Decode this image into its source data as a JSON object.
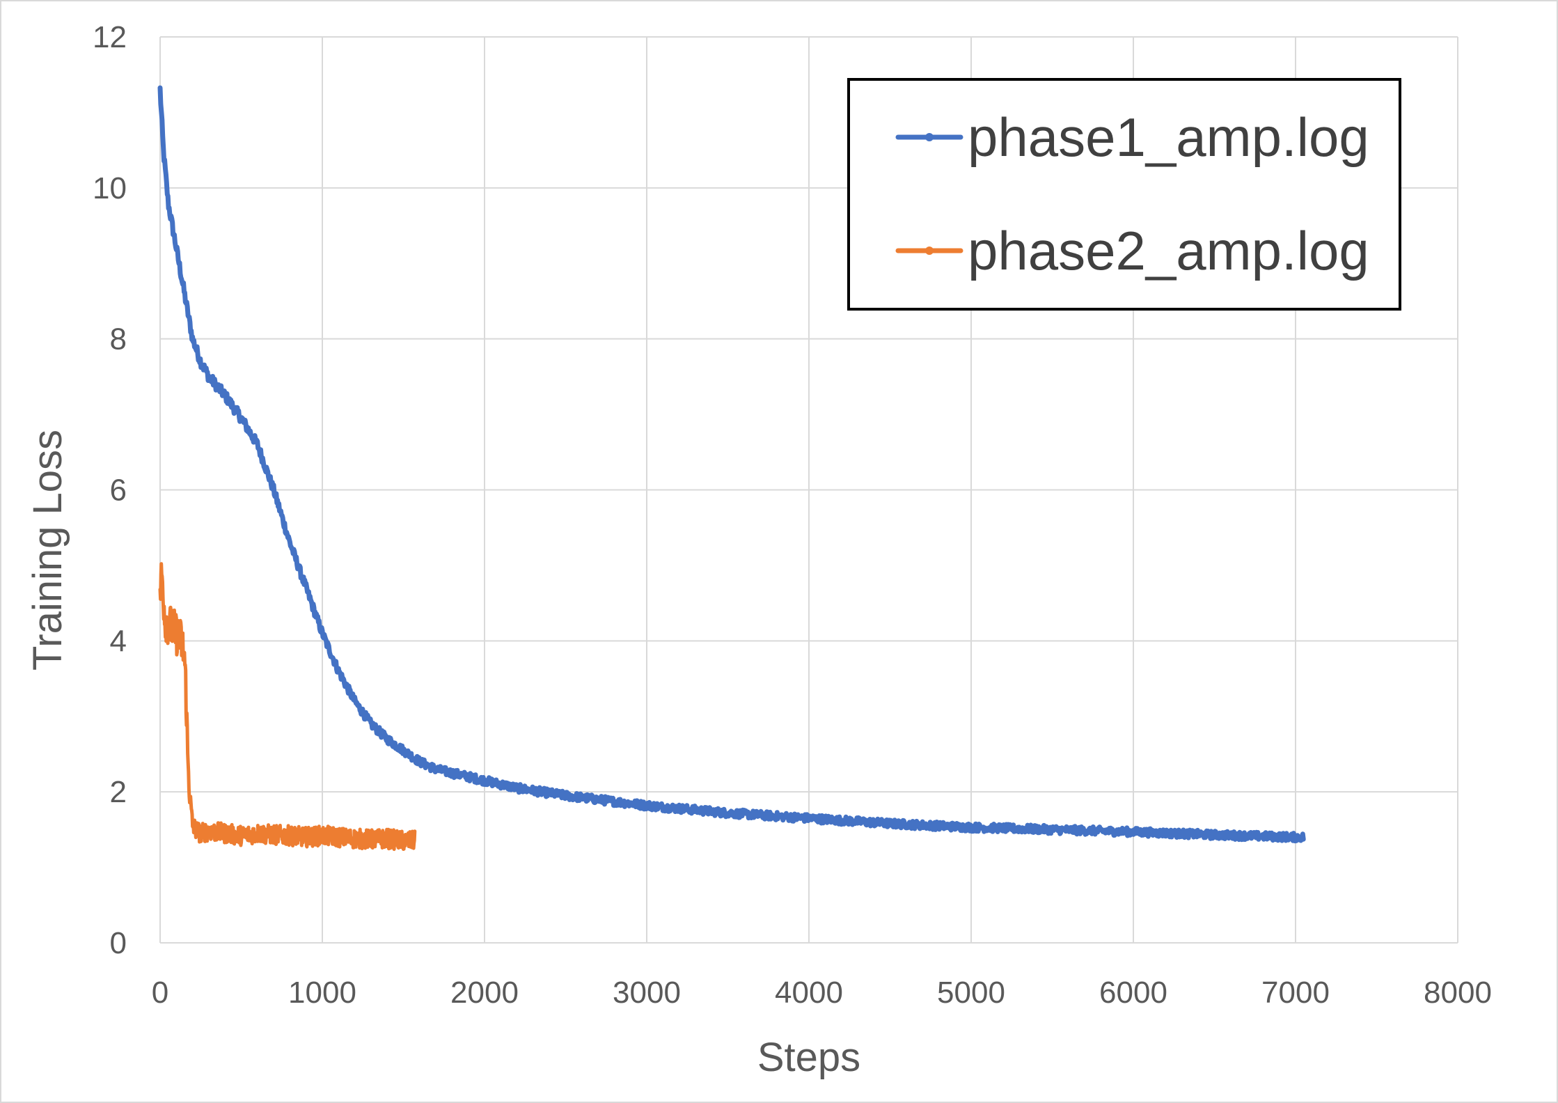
{
  "chart_data": {
    "type": "line",
    "title": "",
    "xlabel": "Steps",
    "ylabel": "Training Loss",
    "xlim": [
      0,
      8000
    ],
    "ylim": [
      0,
      12
    ],
    "x_ticks": [
      "0",
      "1000",
      "2000",
      "3000",
      "4000",
      "5000",
      "6000",
      "7000",
      "8000"
    ],
    "y_ticks": [
      "0",
      "2",
      "4",
      "6",
      "8",
      "10",
      "12"
    ],
    "grid": true,
    "legend_position": "top-right",
    "series": [
      {
        "name": "phase1_amp.log",
        "color": "#4472C4",
        "noise": 0.06,
        "x": [
          0,
          20,
          50,
          100,
          150,
          200,
          250,
          300,
          400,
          500,
          600,
          700,
          800,
          900,
          1000,
          1100,
          1200,
          1300,
          1400,
          1500,
          1600,
          1700,
          1800,
          2000,
          2200,
          2500,
          3000,
          3500,
          4000,
          4500,
          5000,
          5500,
          6000,
          6500,
          7000,
          7050
        ],
        "y": [
          11.3,
          10.5,
          9.8,
          9.2,
          8.6,
          8.0,
          7.7,
          7.5,
          7.25,
          6.95,
          6.6,
          6.0,
          5.3,
          4.7,
          4.1,
          3.6,
          3.2,
          2.9,
          2.7,
          2.55,
          2.4,
          2.3,
          2.25,
          2.15,
          2.05,
          1.95,
          1.82,
          1.72,
          1.65,
          1.58,
          1.53,
          1.5,
          1.47,
          1.43,
          1.4,
          1.4
        ]
      },
      {
        "name": "phase2_amp.log",
        "color": "#ED7D31",
        "noise": 0.13,
        "x": [
          0,
          10,
          30,
          60,
          100,
          130,
          150,
          160,
          170,
          180,
          190,
          200,
          220,
          250,
          300,
          400,
          500,
          600,
          700,
          800,
          900,
          1000,
          1100,
          1200,
          1300,
          1400,
          1500,
          1570
        ],
        "y": [
          4.6,
          4.9,
          4.3,
          4.2,
          4.1,
          4.0,
          3.8,
          3.3,
          2.5,
          2.0,
          1.8,
          1.55,
          1.5,
          1.45,
          1.48,
          1.45,
          1.42,
          1.45,
          1.43,
          1.42,
          1.4,
          1.42,
          1.4,
          1.38,
          1.37,
          1.38,
          1.35,
          1.35
        ]
      }
    ]
  }
}
